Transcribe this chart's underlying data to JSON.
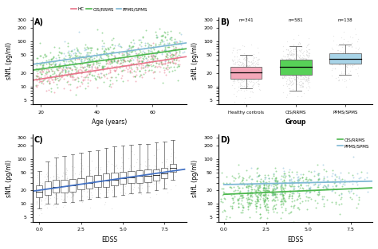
{
  "panel_A": {
    "title": "A)",
    "xlabel": "Age (years)",
    "ylabel": "sNfL (pg/ml)",
    "legend": [
      "HC",
      "CIS/RRMS",
      "PPMS/SPMS"
    ],
    "colors": {
      "HC": "#e8748a",
      "CIS": "#4db84e",
      "PPMS": "#7eb8d4"
    },
    "xlim": [
      17,
      72
    ],
    "ylim_log": [
      4,
      350
    ],
    "yticks": [
      5,
      10,
      20,
      50,
      100,
      200,
      300
    ],
    "xticks": [
      20,
      40,
      60
    ],
    "HC_intercept": 2.25,
    "HC_slope": 0.022,
    "CIS_intercept": 2.8,
    "CIS_slope": 0.02,
    "PPMS_intercept": 3.1,
    "PPMS_slope": 0.02,
    "HC_sigma": 0.35,
    "CIS_sigma": 0.55,
    "PPMS_sigma": 0.4
  },
  "panel_B": {
    "title": "B)",
    "xlabel": "Group",
    "ylabel": "sNfL (pg/ml)",
    "groups": [
      "Healthy controls",
      "CIS/RRMS",
      "PPMS/SPMS"
    ],
    "n_labels": [
      "n=341",
      "n=581",
      "n=138"
    ],
    "colors": [
      "#f4a7b9",
      "#57d157",
      "#a8d4e8"
    ],
    "medians": [
      21,
      27,
      42
    ],
    "q1": [
      15,
      18,
      32
    ],
    "q3": [
      28,
      40,
      55
    ],
    "whislo": [
      9,
      8,
      18
    ],
    "whishi": [
      50,
      80,
      85
    ],
    "ylim_log": [
      4,
      350
    ],
    "yticks": [
      5,
      10,
      20,
      50,
      100,
      200,
      300
    ]
  },
  "panel_C": {
    "title": "C)",
    "xlabel": "EDSS",
    "ylabel": "sNfL (pg/ml)",
    "edss_positions": [
      0.0,
      0.5,
      1.0,
      1.5,
      2.0,
      2.5,
      3.0,
      3.5,
      4.0,
      4.5,
      5.0,
      5.5,
      6.0,
      6.5,
      7.0,
      7.5,
      8.0
    ],
    "medians": [
      19,
      22,
      24,
      25,
      26,
      28,
      30,
      32,
      33,
      35,
      38,
      40,
      42,
      42,
      45,
      48,
      65
    ],
    "q1": [
      14,
      16,
      18,
      18,
      19,
      21,
      22,
      24,
      24,
      26,
      28,
      30,
      30,
      31,
      33,
      38,
      52
    ],
    "q3": [
      26,
      32,
      34,
      35,
      36,
      38,
      42,
      44,
      48,
      50,
      52,
      54,
      56,
      58,
      60,
      65,
      80
    ],
    "whislo": [
      8,
      10,
      10,
      11,
      11,
      12,
      13,
      14,
      14,
      15,
      16,
      17,
      18,
      18,
      20,
      22,
      35
    ],
    "whishi": [
      55,
      90,
      110,
      120,
      130,
      140,
      150,
      160,
      180,
      190,
      200,
      210,
      220,
      220,
      240,
      250,
      270
    ],
    "trend_color": "#4472c4",
    "ylim_log": [
      4,
      350
    ],
    "yticks": [
      5,
      10,
      20,
      50,
      100,
      200,
      300
    ],
    "xticks": [
      0.0,
      2.5,
      5.0,
      7.5
    ]
  },
  "panel_D": {
    "title": "D)",
    "xlabel": "EDSS",
    "ylabel": "sNfL (pg/ml)",
    "legend": [
      "CIS/RRMS",
      "PPMS/SPMS"
    ],
    "colors": {
      "CIS": "#4db84e",
      "PPMS": "#7eb8d4"
    },
    "xlim": [
      -0.3,
      8.8
    ],
    "ylim_log": [
      4,
      350
    ],
    "yticks": [
      5,
      10,
      20,
      50,
      100,
      200,
      300
    ],
    "xticks": [
      0.0,
      2.5,
      5.0,
      7.5
    ],
    "CIS_intercept": 2.8,
    "CIS_slope": 0.038,
    "PPMS_intercept": 3.3,
    "PPMS_slope": 0.02,
    "CIS_sigma": 0.55,
    "PPMS_sigma": 0.38
  },
  "background_color": "#ffffff"
}
